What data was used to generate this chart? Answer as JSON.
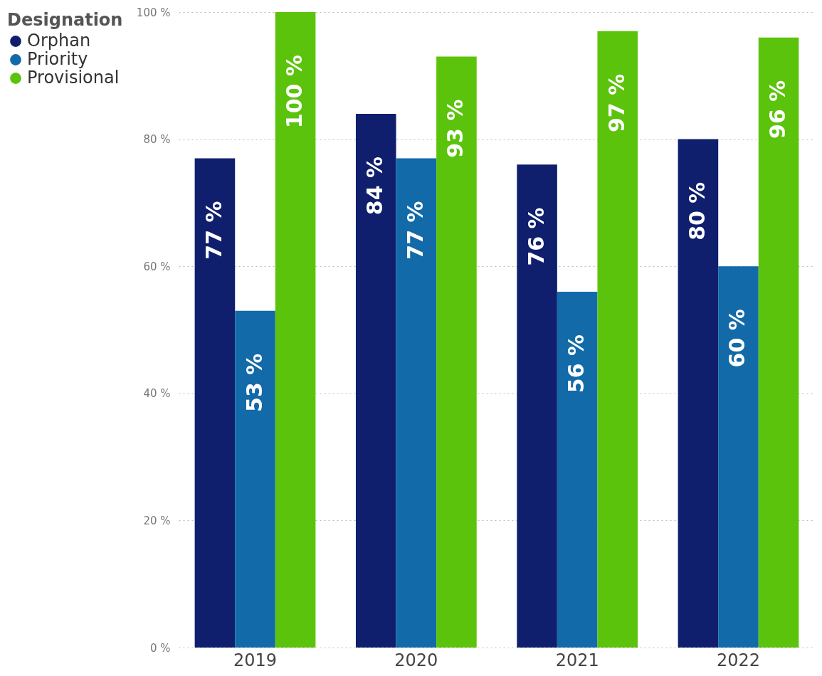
{
  "chart_data": {
    "type": "bar",
    "categories": [
      "2019",
      "2020",
      "2021",
      "2022"
    ],
    "legend_title": "Designation",
    "series": [
      {
        "name": "Orphan",
        "color": "#0f1f6e",
        "values": [
          77,
          84,
          76,
          80
        ],
        "value_labels": [
          "77 %",
          "84 %",
          "76 %",
          "80 %"
        ]
      },
      {
        "name": "Priority",
        "color": "#126aa8",
        "values": [
          53,
          77,
          56,
          60
        ],
        "value_labels": [
          "53 %",
          "77 %",
          "56 %",
          "60 %"
        ]
      },
      {
        "name": "Provisional",
        "color": "#5cc30c",
        "values": [
          100,
          93,
          97,
          96
        ],
        "value_labels": [
          "100 %",
          "93 %",
          "97 %",
          "96 %"
        ]
      }
    ],
    "ylim": [
      0,
      100
    ],
    "yticks": [
      {
        "value": 0,
        "label": "0 %"
      },
      {
        "value": 20,
        "label": "20 %"
      },
      {
        "value": 40,
        "label": "40 %"
      },
      {
        "value": 60,
        "label": "60 %"
      },
      {
        "value": 80,
        "label": "80 %"
      },
      {
        "value": 100,
        "label": "100 %"
      }
    ],
    "grid": "y",
    "legend": "left"
  }
}
